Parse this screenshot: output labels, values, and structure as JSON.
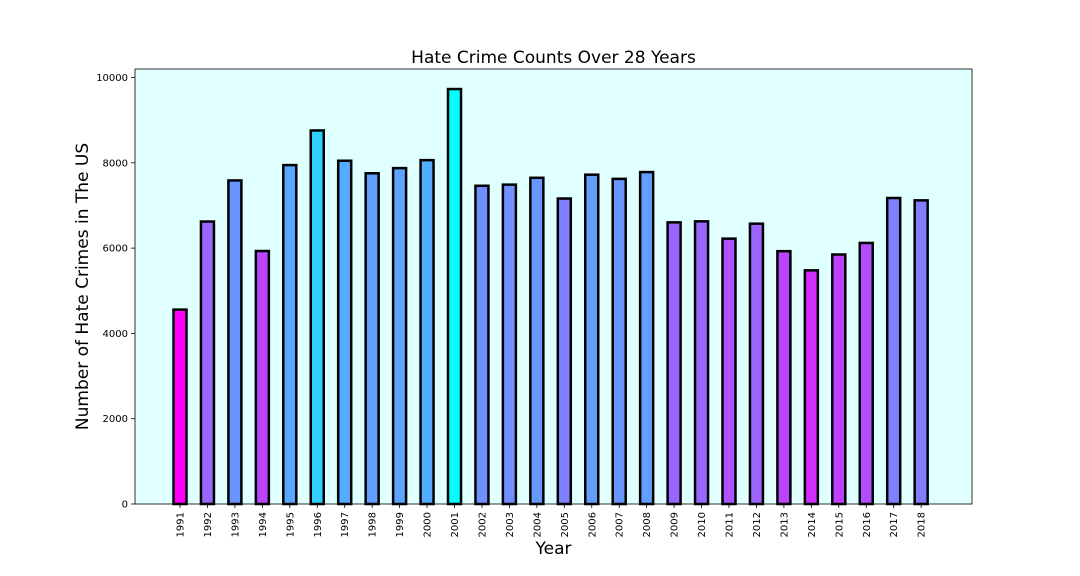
{
  "chart_data": {
    "type": "bar",
    "title": "Hate Crime Counts Over 28 Years",
    "xlabel": "Year",
    "ylabel": "Number of Hate Crimes in The US",
    "ylim": [
      0,
      10200
    ],
    "yticks": [
      0,
      2000,
      4000,
      6000,
      8000,
      10000
    ],
    "grid": false,
    "plot_background": "#e0ffff",
    "bar_edge_color": "#000000",
    "colormap": "cool",
    "categories": [
      "1991",
      "1992",
      "1993",
      "1994",
      "1995",
      "1996",
      "1997",
      "1998",
      "1999",
      "2000",
      "2001",
      "2002",
      "2003",
      "2004",
      "2005",
      "2006",
      "2007",
      "2008",
      "2009",
      "2010",
      "2011",
      "2012",
      "2013",
      "2014",
      "2015",
      "2016",
      "2017",
      "2018"
    ],
    "values": [
      4558,
      6623,
      7587,
      5932,
      7947,
      8759,
      8049,
      7755,
      7876,
      8063,
      9730,
      7462,
      7489,
      7649,
      7163,
      7722,
      7624,
      7783,
      6604,
      6628,
      6222,
      6573,
      5928,
      5479,
      5850,
      6121,
      7175,
      7120
    ]
  }
}
